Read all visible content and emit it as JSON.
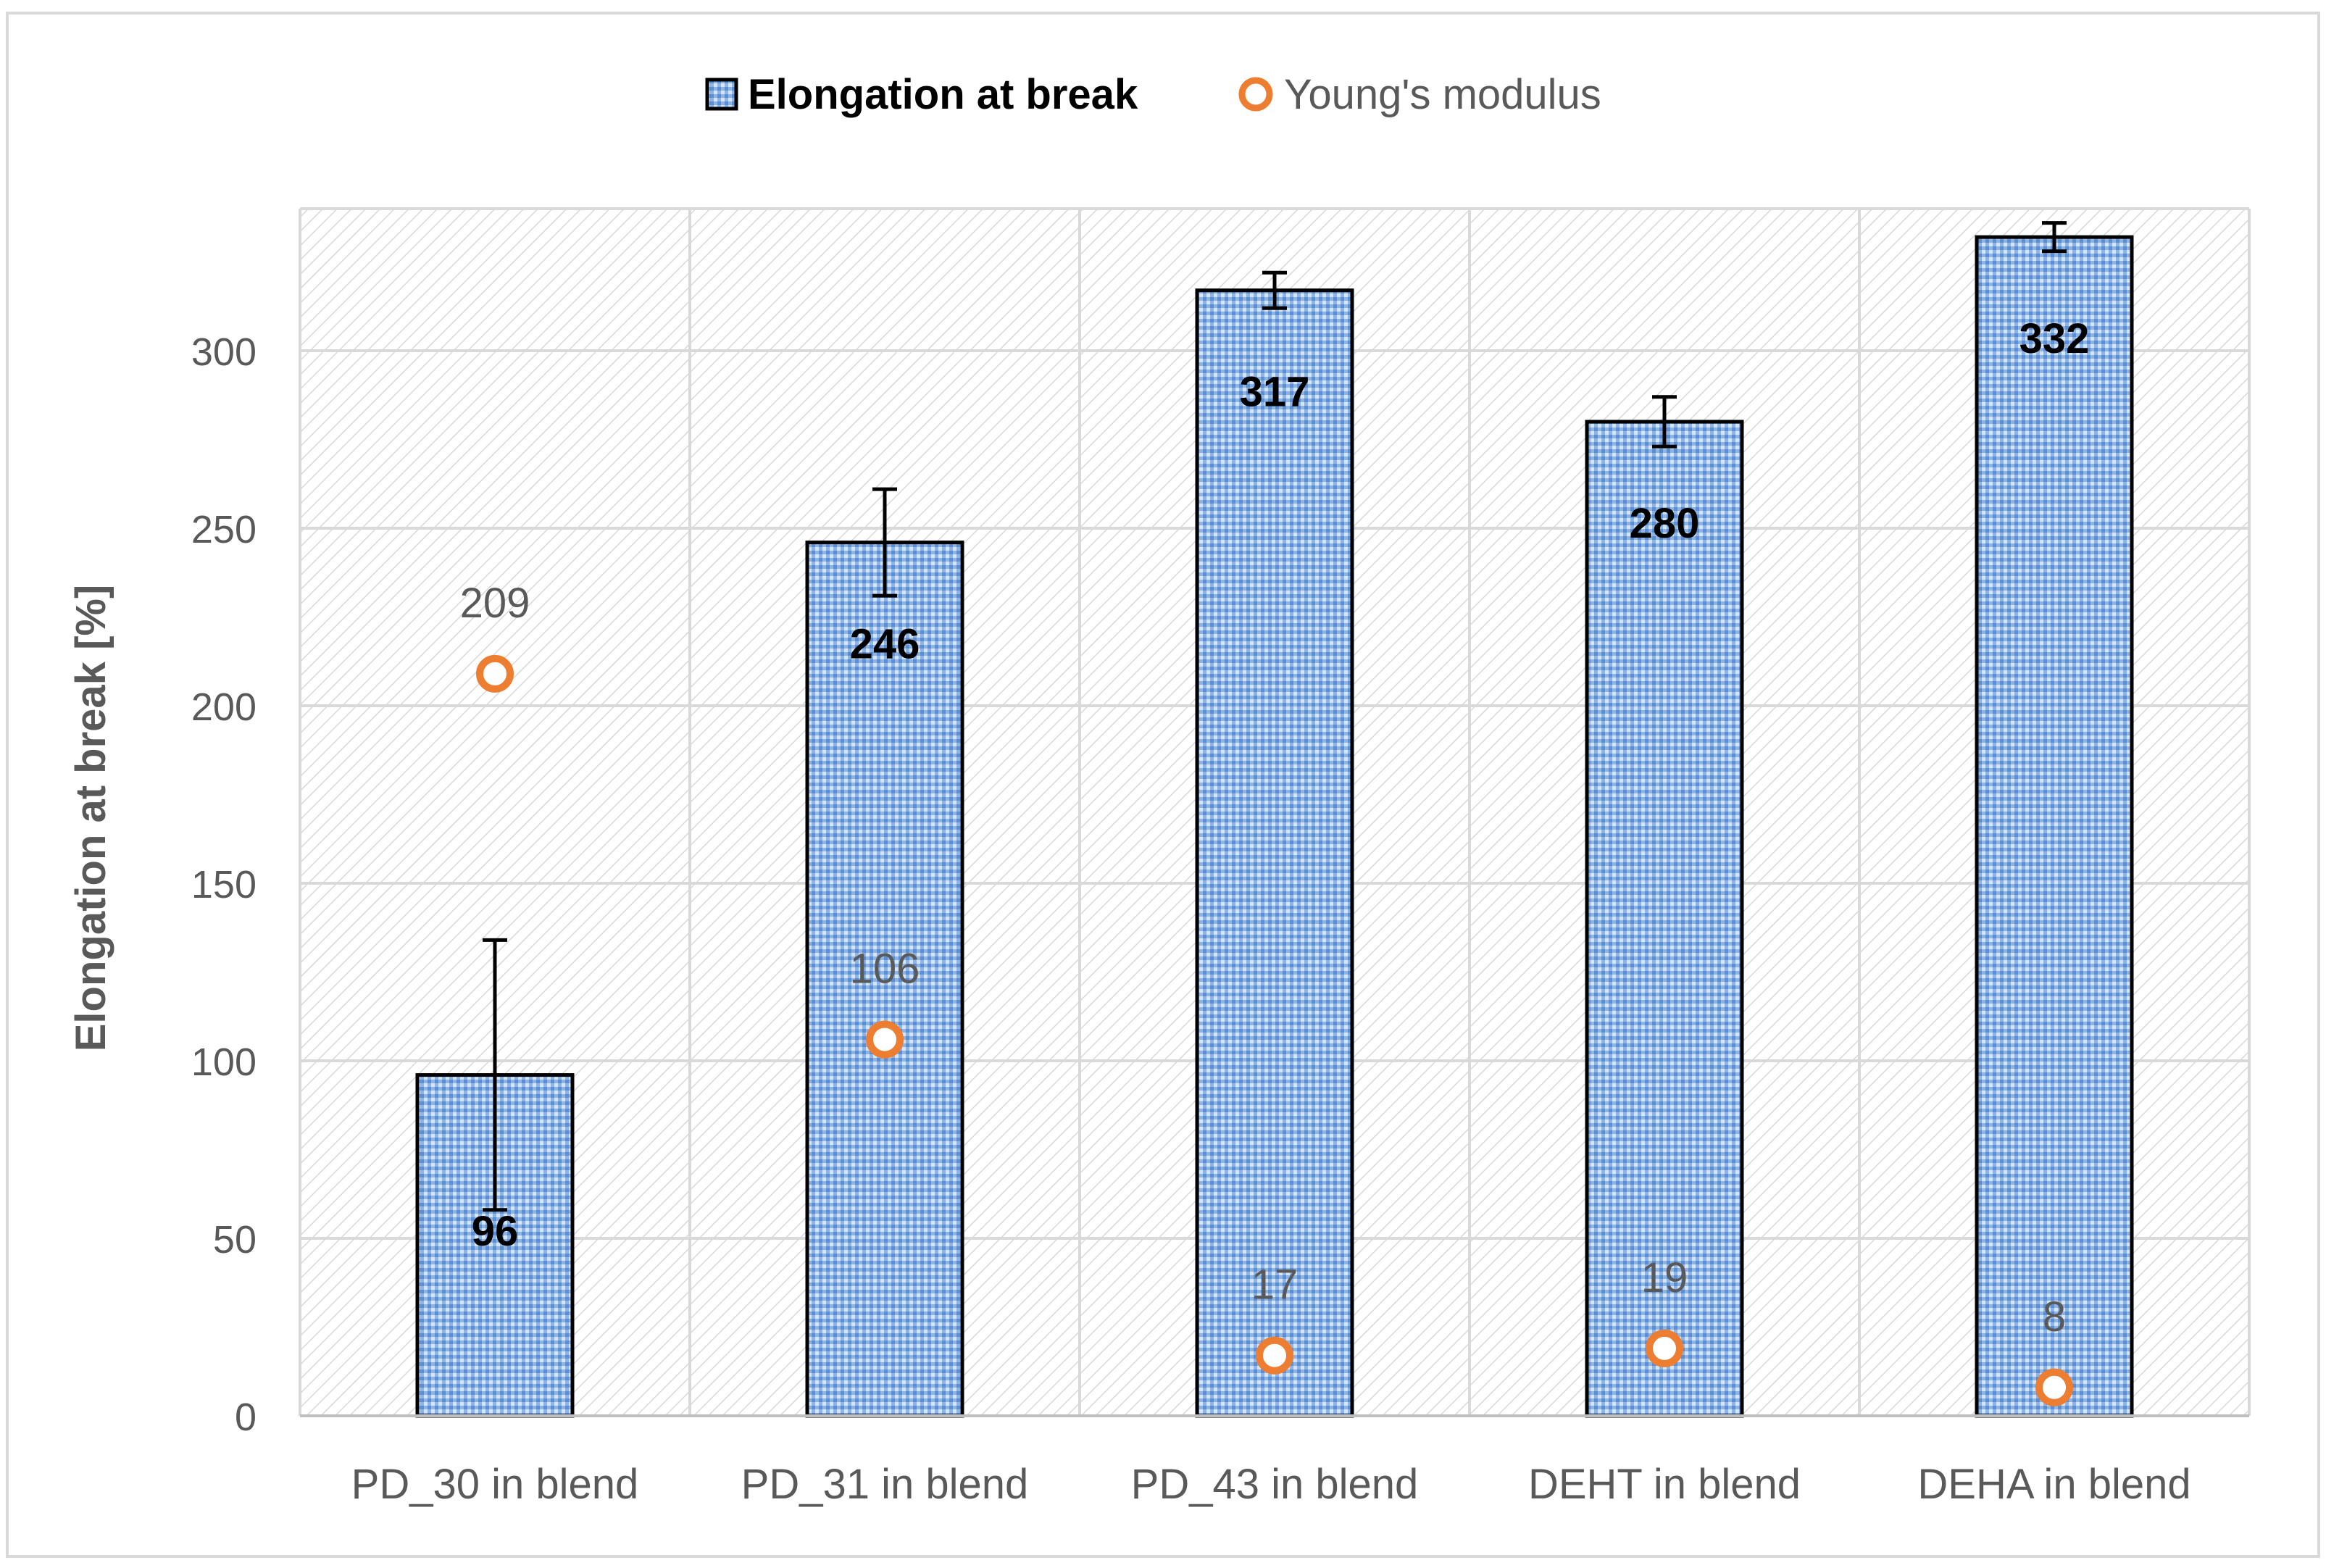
{
  "chart_data": {
    "type": "bar",
    "title": "",
    "xlabel": "",
    "ylabel": "Elongation at break [%]",
    "ylim": [
      0,
      340
    ],
    "yticks": [
      0,
      50,
      100,
      150,
      200,
      250,
      300
    ],
    "grid": true,
    "legend_position": "top-center",
    "categories": [
      "PD_30 in blend",
      "PD_31 in blend",
      "PD_43 in blend",
      "DEHT in blend",
      "DEHA in blend"
    ],
    "series": [
      {
        "name": "Elongation at break",
        "kind": "bar",
        "values": [
          96,
          246,
          317,
          280,
          332
        ],
        "labels": [
          "96",
          "246",
          "317",
          "280",
          "332"
        ],
        "error": [
          38,
          15,
          5,
          7,
          4
        ],
        "color": "#7DA7D9"
      },
      {
        "name": "Young's modulus",
        "kind": "scatter",
        "values": [
          209,
          106,
          17,
          19,
          8
        ],
        "labels": [
          "209",
          "106",
          "17",
          "19",
          "8"
        ],
        "color": "#ED7D31"
      }
    ]
  }
}
